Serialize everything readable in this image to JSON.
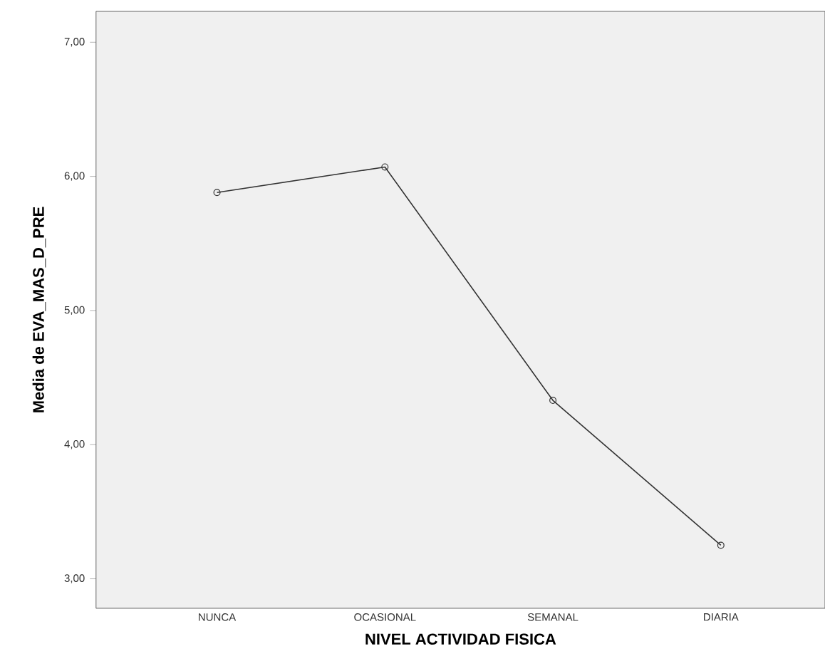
{
  "chart_data": {
    "type": "line",
    "xlabel": "NIVEL ACTIVIDAD FISICA",
    "ylabel": "Media de EVA_MAS_D_PRE",
    "categories": [
      "NUNCA",
      "OCASIONAL",
      "SEMANAL",
      "DIARIA"
    ],
    "values": [
      5.88,
      6.07,
      4.33,
      3.25
    ],
    "color": "#333333",
    "marker": "circle",
    "ylim": [
      2.78,
      7.23
    ],
    "yticks": [
      {
        "value": 3,
        "label": "3,00"
      },
      {
        "value": 4,
        "label": "4,00"
      },
      {
        "value": 5,
        "label": "5,00"
      },
      {
        "value": 6,
        "label": "6,00"
      },
      {
        "value": 7,
        "label": "7,00"
      }
    ],
    "grid": false
  }
}
